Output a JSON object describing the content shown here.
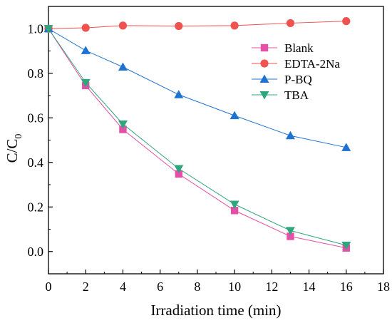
{
  "chart_data": {
    "type": "line",
    "xlabel": "Irradiation time (min)",
    "ylabel_main": "C/C",
    "ylabel_sub": "0",
    "xlim": [
      0,
      18
    ],
    "ylim": [
      -0.1,
      1.1
    ],
    "x_ticks": [
      0,
      2,
      4,
      6,
      8,
      10,
      12,
      14,
      16,
      18
    ],
    "x_tick_labels": [
      "0",
      "2",
      "4",
      "6",
      "8",
      "10",
      "12",
      "14",
      "16",
      "18"
    ],
    "y_ticks": [
      0.0,
      0.2,
      0.4,
      0.6,
      0.8,
      1.0
    ],
    "y_tick_labels": [
      "0.0",
      "0.2",
      "0.4",
      "0.6",
      "0.8",
      "1.0"
    ],
    "grid": false,
    "legend_position": "top-right",
    "series": [
      {
        "name": "Blank",
        "marker": "square",
        "color": "#e44fa8",
        "x": [
          0,
          2,
          4,
          7,
          10,
          13,
          16
        ],
        "y": [
          1.0,
          0.745,
          0.548,
          0.348,
          0.184,
          0.068,
          0.016
        ]
      },
      {
        "name": "EDTA-2Na",
        "marker": "circle",
        "color": "#f0524f",
        "x": [
          0,
          2,
          4,
          7,
          10,
          13,
          16
        ],
        "y": [
          1.0,
          1.004,
          1.014,
          1.012,
          1.014,
          1.025,
          1.034
        ]
      },
      {
        "name": "P-BQ",
        "marker": "triangle-up",
        "color": "#1e73d2",
        "x": [
          0,
          2,
          4,
          7,
          10,
          13,
          16
        ],
        "y": [
          1.0,
          0.902,
          0.828,
          0.704,
          0.61,
          0.52,
          0.467
        ]
      },
      {
        "name": "TBA",
        "marker": "triangle-down",
        "color": "#2fa77c",
        "x": [
          0,
          2,
          4,
          7,
          10,
          13,
          16
        ],
        "y": [
          1.0,
          0.758,
          0.572,
          0.372,
          0.212,
          0.094,
          0.028
        ]
      }
    ]
  }
}
